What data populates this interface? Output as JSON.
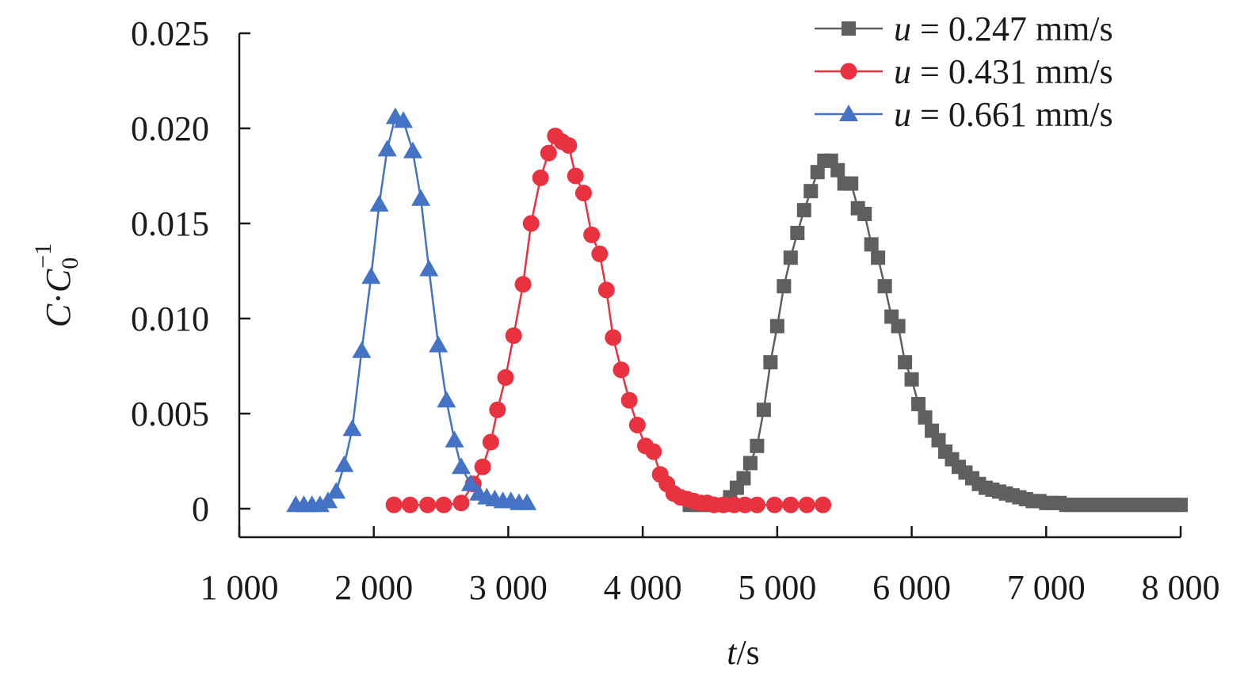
{
  "chart_data": {
    "type": "line",
    "title": "",
    "xlabel_var": "t",
    "xlabel_unit": "/s",
    "ylabel_parts": {
      "c": "C",
      "dot": "·",
      "c0": "C",
      "sub": "0",
      "sup": "−1"
    },
    "xlim": [
      1000,
      8000
    ],
    "ylim": [
      -0.0015,
      0.025
    ],
    "x_ticks": [
      1000,
      2000,
      3000,
      4000,
      5000,
      6000,
      7000,
      8000
    ],
    "x_tick_labels": [
      "1 000",
      "2 000",
      "3 000",
      "4 000",
      "5 000",
      "6 000",
      "7 000",
      "8 000"
    ],
    "y_ticks": [
      0,
      0.005,
      0.01,
      0.015,
      0.02,
      0.025
    ],
    "y_tick_labels": [
      "0",
      "0.005",
      "0.010",
      "0.015",
      "0.020",
      "0.025"
    ],
    "legend_position": "top-right",
    "series": [
      {
        "name": "u = 0.247 mm/s",
        "legend_var": "u",
        "legend_rest": " = 0.247 mm/s",
        "color": "#5f5f5f",
        "marker": "square",
        "x": [
          4350,
          4400,
          4450,
          4500,
          4550,
          4600,
          4650,
          4700,
          4750,
          4800,
          4850,
          4900,
          4950,
          5000,
          5050,
          5100,
          5150,
          5200,
          5250,
          5300,
          5350,
          5400,
          5450,
          5500,
          5550,
          5600,
          5650,
          5700,
          5750,
          5800,
          5850,
          5900,
          5950,
          6000,
          6050,
          6100,
          6150,
          6200,
          6250,
          6300,
          6350,
          6400,
          6450,
          6500,
          6550,
          6600,
          6650,
          6700,
          6750,
          6800,
          6850,
          6900,
          6950,
          7000,
          7050,
          7100,
          7150,
          7200,
          7250,
          7300,
          7350,
          7400,
          7450,
          7500,
          7550,
          7600,
          7650,
          7700,
          7750,
          7800,
          7850,
          7900,
          7950,
          8000
        ],
        "y": [
          0.0002,
          0.0002,
          0.0002,
          0.0002,
          0.0002,
          0.0002,
          0.0006,
          0.0011,
          0.0016,
          0.0024,
          0.0033,
          0.0052,
          0.0077,
          0.0096,
          0.0117,
          0.0132,
          0.0145,
          0.0157,
          0.0167,
          0.0177,
          0.0183,
          0.0183,
          0.0178,
          0.0171,
          0.0171,
          0.0158,
          0.0155,
          0.0139,
          0.0132,
          0.0117,
          0.0101,
          0.0096,
          0.0077,
          0.0068,
          0.0055,
          0.0048,
          0.0041,
          0.0036,
          0.003,
          0.0026,
          0.0022,
          0.0019,
          0.0016,
          0.0013,
          0.0011,
          0.001,
          0.0009,
          0.0008,
          0.0007,
          0.0006,
          0.0005,
          0.0004,
          0.0004,
          0.0003,
          0.0003,
          0.0003,
          0.0002,
          0.0002,
          0.0002,
          0.0002,
          0.0002,
          0.0002,
          0.0002,
          0.0002,
          0.0002,
          0.0002,
          0.0002,
          0.0002,
          0.0002,
          0.0002,
          0.0002,
          0.0002,
          0.0002,
          0.0002
        ]
      },
      {
        "name": "u = 0.431 mm/s",
        "legend_var": "u",
        "legend_rest": " = 0.431 mm/s",
        "color": "#e8323f",
        "marker": "circle",
        "x": [
          2150,
          2270,
          2400,
          2520,
          2650,
          2740,
          2810,
          2870,
          2920,
          2980,
          3040,
          3110,
          3170,
          3240,
          3300,
          3350,
          3400,
          3450,
          3500,
          3560,
          3620,
          3680,
          3730,
          3780,
          3840,
          3900,
          3960,
          4020,
          4080,
          4130,
          4180,
          4230,
          4280,
          4330,
          4380,
          4430,
          4480,
          4530,
          4600,
          4680,
          4760,
          4850,
          4980,
          5100,
          5220,
          5340
        ],
        "y": [
          0.0002,
          0.0002,
          0.0002,
          0.0002,
          0.0003,
          0.0013,
          0.0022,
          0.0035,
          0.0052,
          0.0069,
          0.0091,
          0.0118,
          0.015,
          0.0174,
          0.0187,
          0.0196,
          0.0193,
          0.0191,
          0.0175,
          0.0166,
          0.0144,
          0.0134,
          0.0115,
          0.009,
          0.0073,
          0.0057,
          0.0044,
          0.0033,
          0.003,
          0.0018,
          0.0013,
          0.0008,
          0.0006,
          0.0005,
          0.0004,
          0.0003,
          0.0003,
          0.0002,
          0.0002,
          0.0002,
          0.0002,
          0.0002,
          0.0002,
          0.0002,
          0.0002,
          0.0002
        ]
      },
      {
        "name": "u = 0.661 mm/s",
        "legend_var": "u",
        "legend_rest": " = 0.661 mm/s",
        "color": "#4472c4",
        "marker": "triangle",
        "x": [
          1420,
          1480,
          1540,
          1600,
          1660,
          1720,
          1780,
          1840,
          1910,
          1980,
          2040,
          2100,
          2160,
          2220,
          2290,
          2350,
          2410,
          2480,
          2540,
          2600,
          2650,
          2720,
          2780,
          2840,
          2900,
          2960,
          3020,
          3080,
          3140
        ],
        "y": [
          0.0002,
          0.0002,
          0.0002,
          0.0002,
          0.0004,
          0.0009,
          0.0023,
          0.0042,
          0.0083,
          0.0122,
          0.016,
          0.0189,
          0.0206,
          0.0204,
          0.0188,
          0.0163,
          0.0126,
          0.0086,
          0.0057,
          0.0036,
          0.0022,
          0.0013,
          0.0008,
          0.0006,
          0.0005,
          0.0004,
          0.0004,
          0.0003,
          0.0003
        ]
      }
    ]
  }
}
